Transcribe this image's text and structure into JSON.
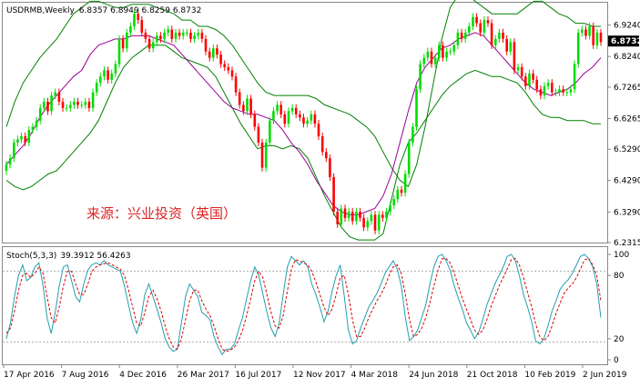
{
  "header": {
    "symbol": "USDRMB,Weekly",
    "ohlc": "6.8357 6.8949 6.8259 6.8732"
  },
  "watermark": "来源：兴业投资（英国）",
  "stoch_header": {
    "label": "Stoch(5,3,3)",
    "values": "39.3912 56.4263"
  },
  "colors": {
    "bull": "#00dd00",
    "bear": "#ff0000",
    "bands": "#008000",
    "ma": "#990099",
    "stoch_main": "#20a0b0",
    "stoch_signal": "#dd0000",
    "watermark": "#dd2222",
    "price_box": "#000000"
  },
  "chart_data": [
    {
      "type": "candlestick",
      "title": "USDRMB,Weekly",
      "current_price": "6.8732",
      "ylim": [
        6.2315,
        6.9924
      ],
      "y_ticks": [
        "6.9240",
        "6.8240",
        "6.7265",
        "6.6265",
        "6.5290",
        "6.4290",
        "6.3290",
        "6.2315"
      ],
      "x_ticks": [
        "17 Apr 2016",
        "7 Aug 2016",
        "4 Dec 2016",
        "26 Mar 2017",
        "16 Jul 2017",
        "12 Nov 2017",
        "4 Mar 2018",
        "24 Jun 2018",
        "21 Oct 2018",
        "10 Feb 2019",
        "2 Jun 2019"
      ],
      "closes": [
        6.48,
        6.5,
        6.55,
        6.56,
        6.57,
        6.55,
        6.59,
        6.6,
        6.62,
        6.66,
        6.68,
        6.65,
        6.7,
        6.71,
        6.68,
        6.66,
        6.66,
        6.67,
        6.68,
        6.67,
        6.67,
        6.68,
        6.66,
        6.71,
        6.74,
        6.76,
        6.78,
        6.75,
        6.77,
        6.8,
        6.88,
        6.85,
        6.9,
        6.92,
        6.96,
        6.94,
        6.9,
        6.88,
        6.85,
        6.87,
        6.89,
        6.88,
        6.9,
        6.91,
        6.88,
        6.9,
        6.89,
        6.9,
        6.9,
        6.88,
        6.89,
        6.9,
        6.88,
        6.84,
        6.82,
        6.85,
        6.83,
        6.8,
        6.79,
        6.78,
        6.76,
        6.71,
        6.67,
        6.65,
        6.69,
        6.64,
        6.6,
        6.55,
        6.47,
        6.55,
        6.62,
        6.65,
        6.67,
        6.64,
        6.61,
        6.65,
        6.66,
        6.64,
        6.63,
        6.61,
        6.62,
        6.64,
        6.61,
        6.57,
        6.52,
        6.5,
        6.44,
        6.33,
        6.29,
        6.34,
        6.31,
        6.33,
        6.3,
        6.33,
        6.31,
        6.28,
        6.3,
        6.32,
        6.27,
        6.32,
        6.31,
        6.33,
        6.35,
        6.37,
        6.4,
        6.39,
        6.45,
        6.55,
        6.6,
        6.72,
        6.8,
        6.82,
        6.84,
        6.8,
        6.82,
        6.86,
        6.82,
        6.84,
        6.84,
        6.86,
        6.9,
        6.88,
        6.9,
        6.92,
        6.95,
        6.93,
        6.9,
        6.94,
        6.93,
        6.86,
        6.88,
        6.9,
        6.88,
        6.84,
        6.87,
        6.78,
        6.79,
        6.76,
        6.73,
        6.77,
        6.75,
        6.72,
        6.7,
        6.73,
        6.74,
        6.71,
        6.71,
        6.72,
        6.71,
        6.71,
        6.72,
        6.8,
        6.9,
        6.91,
        6.89,
        6.92,
        6.86,
        6.9,
        6.87
      ],
      "bands_upper": [
        6.6,
        6.68,
        6.74,
        6.78,
        6.82,
        6.85,
        6.88,
        6.92,
        6.96,
        6.98,
        7.0,
        7.0,
        6.99,
        6.98,
        6.98,
        6.99,
        6.99,
        6.99,
        6.98,
        6.97,
        6.96,
        6.94,
        6.94,
        6.92,
        6.92,
        6.91,
        6.89,
        6.86,
        6.82,
        6.78,
        6.74,
        6.71,
        6.7,
        6.7,
        6.7,
        6.7,
        6.7,
        6.69,
        6.67,
        6.66,
        6.65,
        6.64,
        6.62,
        6.6,
        6.57,
        6.52,
        6.47,
        6.43,
        6.41,
        6.48,
        6.6,
        6.74,
        6.88,
        6.98,
        7.02,
        7.02,
        7.0,
        6.98,
        6.96,
        6.96,
        6.96,
        6.96,
        6.98,
        7.0,
        7.0,
        6.98,
        6.96,
        6.95,
        6.93,
        6.93,
        6.92,
        6.92
      ],
      "bands_lower": [
        6.43,
        6.41,
        6.4,
        6.41,
        6.43,
        6.45,
        6.46,
        6.49,
        6.52,
        6.55,
        6.58,
        6.62,
        6.68,
        6.74,
        6.79,
        6.82,
        6.84,
        6.86,
        6.86,
        6.86,
        6.84,
        6.82,
        6.81,
        6.8,
        6.79,
        6.76,
        6.71,
        6.66,
        6.61,
        6.57,
        6.53,
        6.54,
        6.54,
        6.53,
        6.54,
        6.53,
        6.5,
        6.44,
        6.38,
        6.33,
        6.28,
        6.25,
        6.24,
        6.24,
        6.24,
        6.26,
        6.37,
        6.48,
        6.55,
        6.58,
        6.62,
        6.66,
        6.7,
        6.73,
        6.75,
        6.77,
        6.78,
        6.77,
        6.76,
        6.76,
        6.75,
        6.74,
        6.71,
        6.67,
        6.64,
        6.63,
        6.63,
        6.62,
        6.62,
        6.62,
        6.61,
        6.61
      ],
      "ma_line": [
        6.48,
        6.51,
        6.54,
        6.58,
        6.63,
        6.67,
        6.7,
        6.73,
        6.76,
        6.78,
        6.83,
        6.86,
        6.87,
        6.88,
        6.88,
        6.89,
        6.89,
        6.89,
        6.88,
        6.87,
        6.86,
        6.83,
        6.8,
        6.77,
        6.74,
        6.71,
        6.68,
        6.66,
        6.65,
        6.64,
        6.64,
        6.63,
        6.62,
        6.59,
        6.55,
        6.52,
        6.48,
        6.43,
        6.39,
        6.35,
        6.33,
        6.32,
        6.32,
        6.33,
        6.34,
        6.38,
        6.45,
        6.55,
        6.65,
        6.74,
        6.79,
        6.82,
        6.85,
        6.86,
        6.88,
        6.89,
        6.9,
        6.89,
        6.86,
        6.83,
        6.8,
        6.77,
        6.74,
        6.72,
        6.71,
        6.7,
        6.71,
        6.72,
        6.74,
        6.77,
        6.79,
        6.82
      ]
    },
    {
      "type": "line",
      "title": "Stoch(5,3,3)",
      "ylim": [
        0,
        100
      ],
      "y_ticks": [
        "100",
        "80",
        "20",
        "0"
      ],
      "levels": [
        80,
        20
      ],
      "series": [
        {
          "values": [
            20,
            35,
            60,
            80,
            90,
            75,
            78,
            88,
            92,
            70,
            40,
            25,
            45,
            70,
            88,
            90,
            75,
            60,
            55,
            72,
            85,
            90,
            92,
            90,
            94,
            90,
            88,
            86,
            84,
            70,
            52,
            35,
            25,
            38,
            62,
            72,
            60,
            48,
            35,
            20,
            12,
            8,
            10,
            35,
            60,
            72,
            66,
            60,
            45,
            42,
            38,
            22,
            12,
            5,
            10,
            10,
            15,
            28,
            40,
            58,
            75,
            88,
            80,
            62,
            45,
            30,
            22,
            35,
            62,
            88,
            98,
            94,
            90,
            94,
            88,
            72,
            62,
            50,
            36,
            46,
            65,
            80,
            90,
            60,
            28,
            15,
            18,
            30,
            40,
            50,
            56,
            63,
            72,
            82,
            88,
            94,
            86,
            70,
            40,
            18,
            22,
            28,
            40,
            52,
            72,
            88,
            98,
            100,
            94,
            85,
            70,
            58,
            48,
            35,
            28,
            20,
            26,
            38,
            52,
            62,
            72,
            80,
            88,
            98,
            100,
            94,
            80,
            62,
            50,
            36,
            18,
            15,
            20,
            32,
            46,
            56,
            67,
            72,
            76,
            82,
            90,
            98,
            100,
            96,
            88,
            72,
            40
          ]
        },
        {
          "values": [
            25,
            30,
            46,
            66,
            80,
            82,
            78,
            82,
            88,
            82,
            60,
            40,
            35,
            50,
            70,
            84,
            84,
            72,
            62,
            62,
            72,
            84,
            88,
            90,
            91,
            92,
            90,
            88,
            86,
            80,
            66,
            50,
            35,
            32,
            45,
            60,
            66,
            58,
            46,
            32,
            20,
            12,
            10,
            20,
            38,
            56,
            66,
            66,
            56,
            48,
            42,
            32,
            20,
            10,
            8,
            9,
            12,
            18,
            28,
            42,
            58,
            75,
            84,
            78,
            62,
            45,
            32,
            30,
            42,
            65,
            86,
            95,
            94,
            92,
            90,
            84,
            74,
            62,
            50,
            42,
            48,
            62,
            78,
            80,
            62,
            38,
            22,
            22,
            30,
            40,
            48,
            56,
            62,
            70,
            80,
            88,
            90,
            82,
            62,
            38,
            22,
            24,
            30,
            40,
            54,
            70,
            85,
            96,
            96,
            92,
            82,
            70,
            58,
            48,
            38,
            28,
            24,
            28,
            38,
            50,
            60,
            70,
            78,
            86,
            95,
            96,
            90,
            78,
            64,
            50,
            34,
            22,
            18,
            22,
            32,
            44,
            54,
            63,
            68,
            72,
            78,
            86,
            95,
            96,
            90,
            80,
            56
          ]
        }
      ]
    }
  ]
}
